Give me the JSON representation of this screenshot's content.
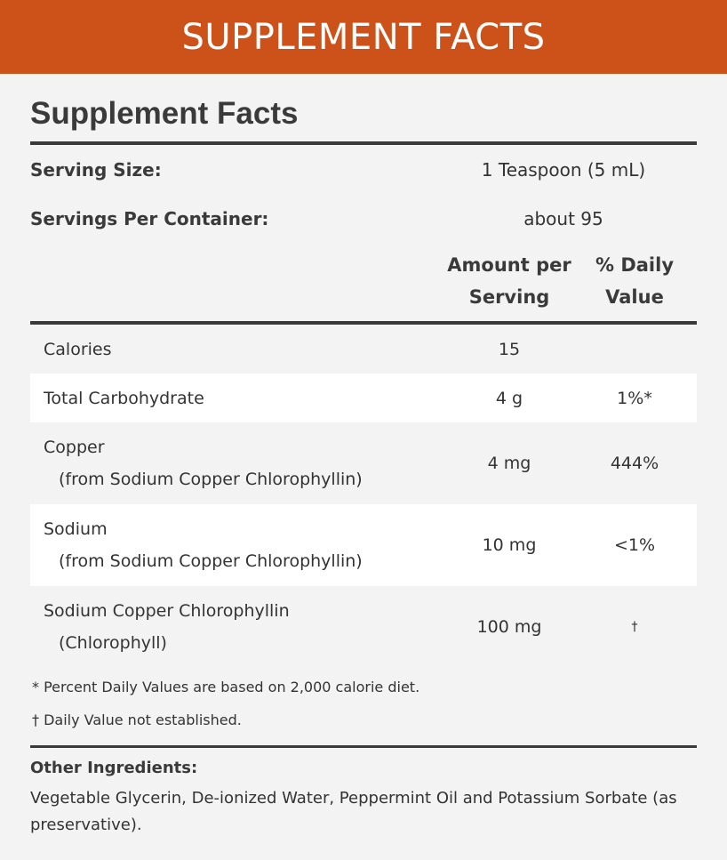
{
  "banner": {
    "title": "SUPPLEMENT FACTS"
  },
  "panel": {
    "heading": "Supplement Facts",
    "serving_size": {
      "label": "Serving Size:",
      "value": "1 Teaspoon (5 mL)"
    },
    "servings_per_container": {
      "label": "Servings Per Container:",
      "value": "about 95"
    },
    "columns": {
      "amount_line1": "Amount per",
      "amount_line2": "Serving",
      "dv_line1": "% Daily",
      "dv_line2": "Value"
    },
    "rows": [
      {
        "name": "Calories",
        "sub": "",
        "amount": "15",
        "dv": ""
      },
      {
        "name": "Total Carbohydrate",
        "sub": "",
        "amount": "4 g",
        "dv": "1%*"
      },
      {
        "name": "Copper",
        "sub": "(from Sodium Copper Chlorophyllin)",
        "amount": "4 mg",
        "dv": "444%"
      },
      {
        "name": "Sodium",
        "sub": "(from Sodium Copper Chlorophyllin)",
        "amount": "10 mg",
        "dv": "<1%"
      },
      {
        "name": "Sodium Copper Chlorophyllin",
        "sub": "(Chlorophyll)",
        "amount": "100 mg",
        "dv": "†"
      }
    ],
    "footnotes": [
      "* Percent Daily Values are based on 2,000 calorie diet.",
      "† Daily Value not established."
    ],
    "other_ingredients": {
      "title": "Other Ingredients:",
      "text": "Vegetable Glycerin, De-ionized Water, Peppermint Oil and Potassium Sorbate (as preservative)."
    }
  },
  "colors": {
    "banner": "#cd5219",
    "background": "#f3f3f3",
    "rule": "#3a3a3a",
    "row_alt": "#ffffff"
  }
}
